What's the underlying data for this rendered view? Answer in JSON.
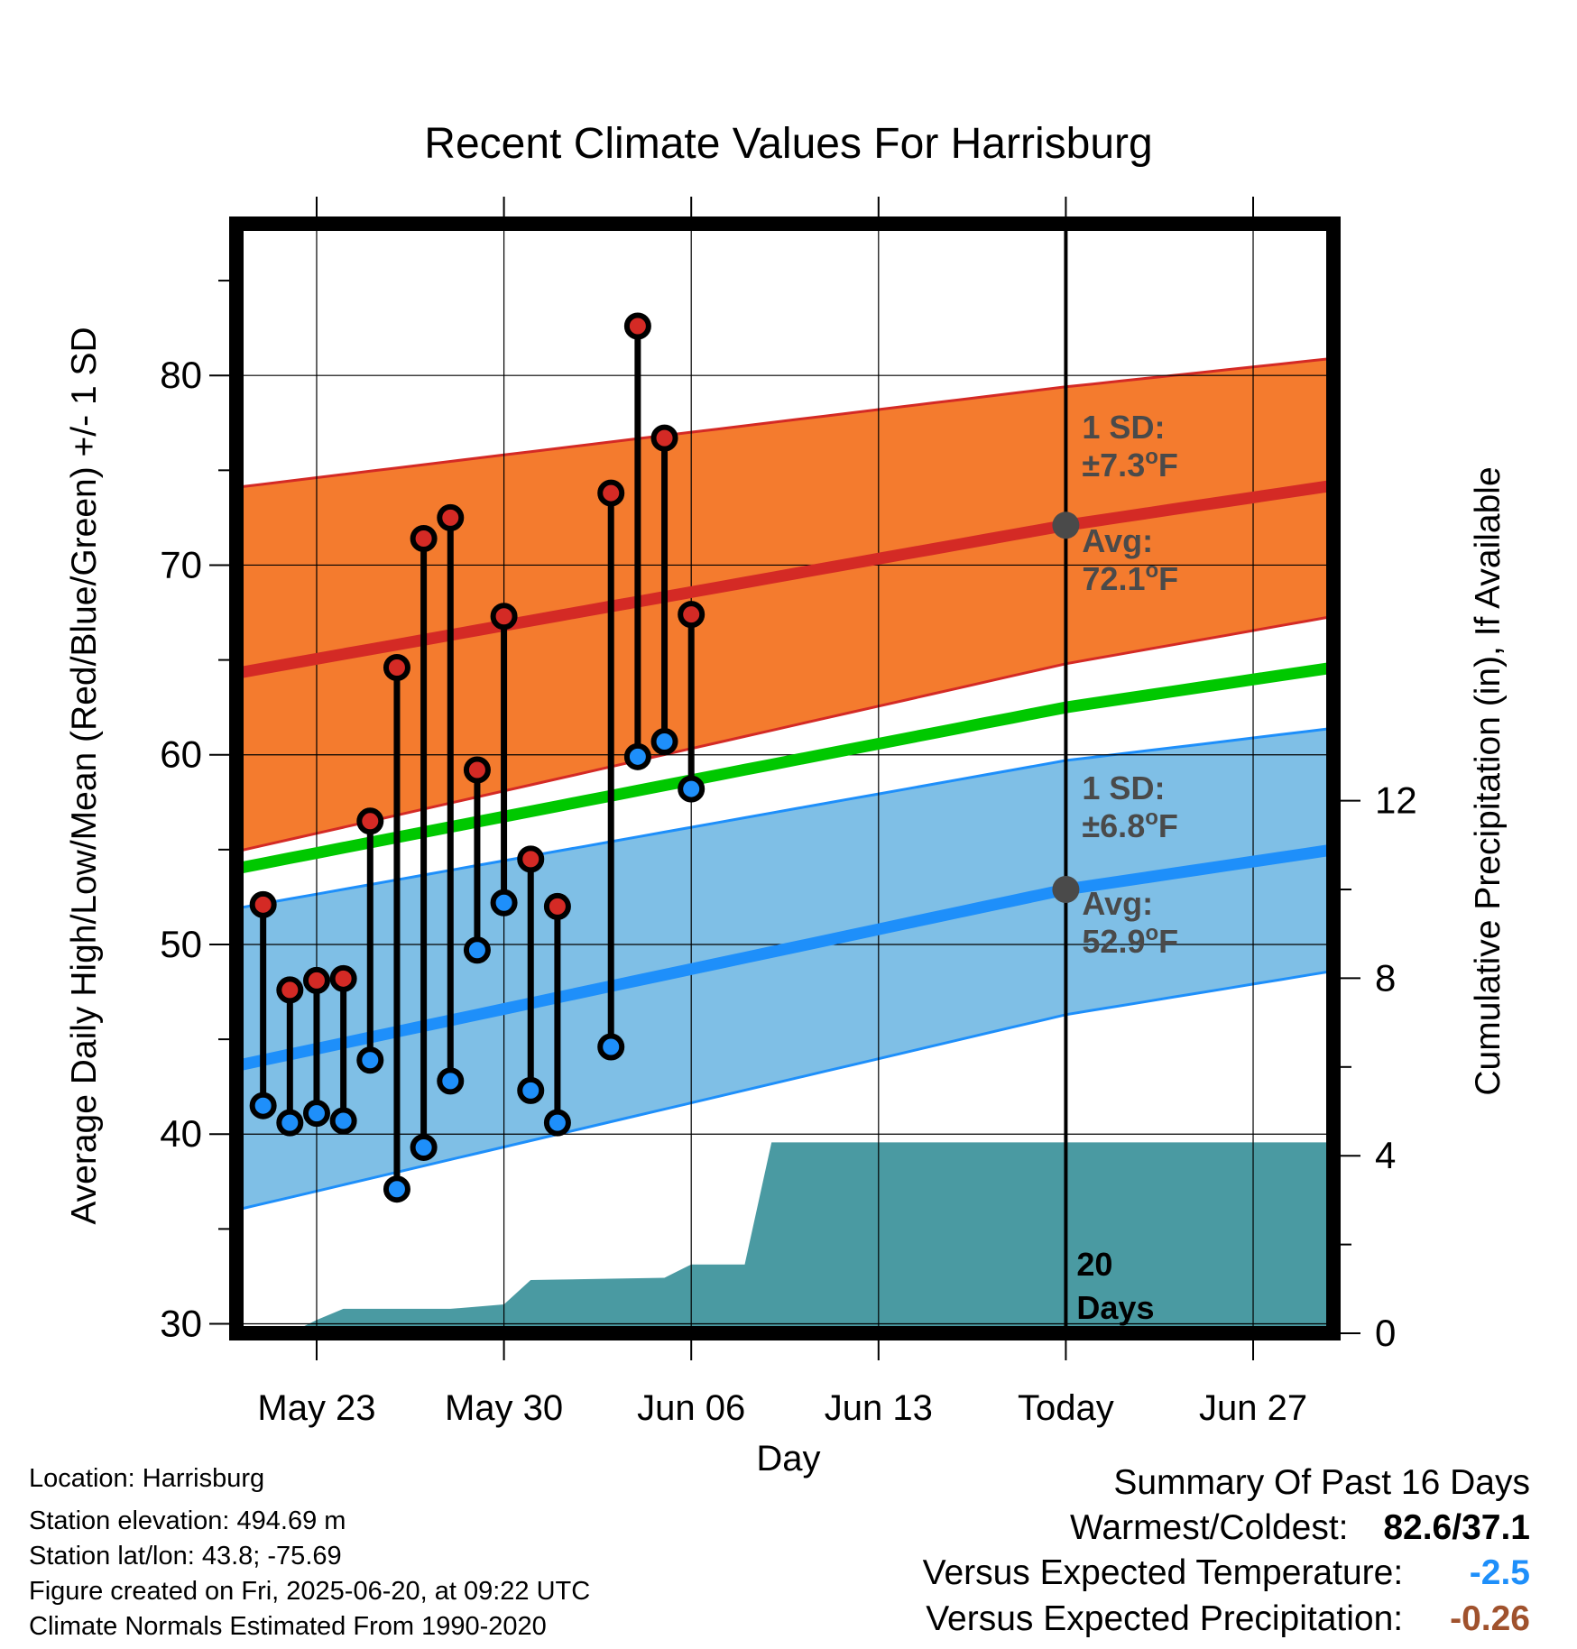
{
  "chart_data": {
    "type": "line",
    "title": "Recent Climate Values For Harrisburg",
    "xlabel": "Day",
    "ylabel": "Average Daily High/Low/Mean (Red/Blue/Green) +/- 1 SD",
    "y2label": "Cumulative Precipitation (in), If Available",
    "x_range": [
      "2025-05-20",
      "2025-06-30"
    ],
    "ylim": [
      29.5,
      88
    ],
    "y2lim": [
      0,
      25
    ],
    "yticks": [
      "30",
      "40",
      "50",
      "60",
      "70",
      "80"
    ],
    "y2ticks": [
      "0",
      "4",
      "8",
      "12"
    ],
    "xticks": [
      {
        "date": "2025-05-23",
        "label": "May 23"
      },
      {
        "date": "2025-05-30",
        "label": "May 30"
      },
      {
        "date": "2025-06-06",
        "label": "Jun 06"
      },
      {
        "date": "2025-06-13",
        "label": "Jun 13"
      },
      {
        "date": "2025-06-20",
        "label": "Today"
      },
      {
        "date": "2025-06-27",
        "label": "Jun 27"
      }
    ],
    "grid": true,
    "today": "2025-06-20",
    "normal_high": {
      "mean": [
        {
          "date": "2025-05-20",
          "value": 64.3
        },
        {
          "date": "2025-06-20",
          "value": 72.1
        },
        {
          "date": "2025-06-30",
          "value": 74.2
        }
      ],
      "plus_1sd": [
        {
          "date": "2025-05-20",
          "value": 74.1
        },
        {
          "date": "2025-06-20",
          "value": 79.4
        },
        {
          "date": "2025-06-30",
          "value": 80.9
        }
      ],
      "minus_1sd": [
        {
          "date": "2025-05-20",
          "value": 54.9
        },
        {
          "date": "2025-06-20",
          "value": 64.8
        },
        {
          "date": "2025-06-30",
          "value": 67.3
        }
      ]
    },
    "normal_mean": [
      {
        "date": "2025-05-20",
        "value": 54.0
      },
      {
        "date": "2025-06-20",
        "value": 62.5
      },
      {
        "date": "2025-06-30",
        "value": 64.6
      }
    ],
    "normal_low": {
      "mean": [
        {
          "date": "2025-05-20",
          "value": 43.6
        },
        {
          "date": "2025-06-20",
          "value": 52.9
        },
        {
          "date": "2025-06-30",
          "value": 55.0
        }
      ],
      "plus_1sd": [
        {
          "date": "2025-05-20",
          "value": 51.9
        },
        {
          "date": "2025-06-20",
          "value": 59.7
        },
        {
          "date": "2025-06-30",
          "value": 61.4
        }
      ],
      "minus_1sd": [
        {
          "date": "2025-05-20",
          "value": 36.0
        },
        {
          "date": "2025-06-20",
          "value": 46.3
        },
        {
          "date": "2025-06-30",
          "value": 48.6
        }
      ]
    },
    "observed": [
      {
        "date": "2025-05-21",
        "high": 52.1,
        "low": 41.5
      },
      {
        "date": "2025-05-22",
        "high": 47.6,
        "low": 40.6
      },
      {
        "date": "2025-05-23",
        "high": 48.1,
        "low": 41.1
      },
      {
        "date": "2025-05-24",
        "high": 48.2,
        "low": 40.7
      },
      {
        "date": "2025-05-25",
        "high": 56.5,
        "low": 43.9
      },
      {
        "date": "2025-05-26",
        "high": 64.6,
        "low": 37.1
      },
      {
        "date": "2025-05-27",
        "high": 71.4,
        "low": 39.3
      },
      {
        "date": "2025-05-28",
        "high": 72.5,
        "low": 42.8
      },
      {
        "date": "2025-05-29",
        "high": 59.2,
        "low": 49.7
      },
      {
        "date": "2025-05-30",
        "high": 67.3,
        "low": 52.2
      },
      {
        "date": "2025-05-31",
        "high": 54.5,
        "low": 42.3
      },
      {
        "date": "2025-06-01",
        "high": 52.0,
        "low": 40.6
      },
      {
        "date": "2025-06-03",
        "high": 73.8,
        "low": 44.6
      },
      {
        "date": "2025-06-04",
        "high": 82.6,
        "low": 59.9
      },
      {
        "date": "2025-06-05",
        "high": 76.7,
        "low": 60.7
      },
      {
        "date": "2025-06-06",
        "high": 67.4,
        "low": 58.2
      }
    ],
    "precip_cumulative": [
      {
        "date": "2025-05-20",
        "value": 0
      },
      {
        "date": "2025-05-22",
        "value": 0
      },
      {
        "date": "2025-05-23",
        "value": 0.3
      },
      {
        "date": "2025-05-24",
        "value": 0.55
      },
      {
        "date": "2025-05-28",
        "value": 0.55
      },
      {
        "date": "2025-05-30",
        "value": 0.65
      },
      {
        "date": "2025-05-31",
        "value": 1.2
      },
      {
        "date": "2025-06-05",
        "value": 1.25
      },
      {
        "date": "2025-06-06",
        "value": 1.55
      },
      {
        "date": "2025-06-08",
        "value": 1.55
      },
      {
        "date": "2025-06-09",
        "value": 4.3
      },
      {
        "date": "2025-06-30",
        "value": 4.3
      }
    ],
    "annotations": {
      "high_sd_label": "1 SD:",
      "high_sd_value": "±7.3",
      "high_avg_label": "Avg:",
      "high_avg_value": "72.1",
      "low_sd_label": "1 SD:",
      "low_sd_value": "±6.8",
      "low_avg_label": "Avg:",
      "low_avg_value": "52.9",
      "degree_symbol": "o",
      "unit": "F",
      "days_count": "20",
      "days_label": "Days"
    },
    "colors": {
      "high_band": "#f47b2e",
      "high_line": "#d42a25",
      "mean_line": "#00c800",
      "low_band": "#7fbfe6",
      "low_line": "#1e8ffa",
      "precip_fill": "#4a9aa2",
      "annotation_text": "#4a4a4a",
      "marker_high": "#d42a25",
      "marker_low": "#1e8ffa"
    }
  },
  "info": {
    "location": "Location: Harrisburg",
    "elevation": "Station elevation: 494.69 m",
    "latlon": "Station lat/lon: 43.8; -75.69",
    "created": "Figure created on Fri, 2025-06-20, at 09:22 UTC",
    "normals": "Climate Normals Estimated From 1990-2020"
  },
  "summary": {
    "title": "Summary Of Past 16 Days",
    "warm_cold_label": "Warmest/Coldest:",
    "warm_cold_value": "82.6/37.1",
    "temp_label": "Versus Expected Temperature:",
    "temp_value": "-2.5",
    "temp_color": "#1e8ffa",
    "precip_label": "Versus Expected Precipitation:",
    "precip_value": "-0.26",
    "precip_color": "#a0522d"
  }
}
